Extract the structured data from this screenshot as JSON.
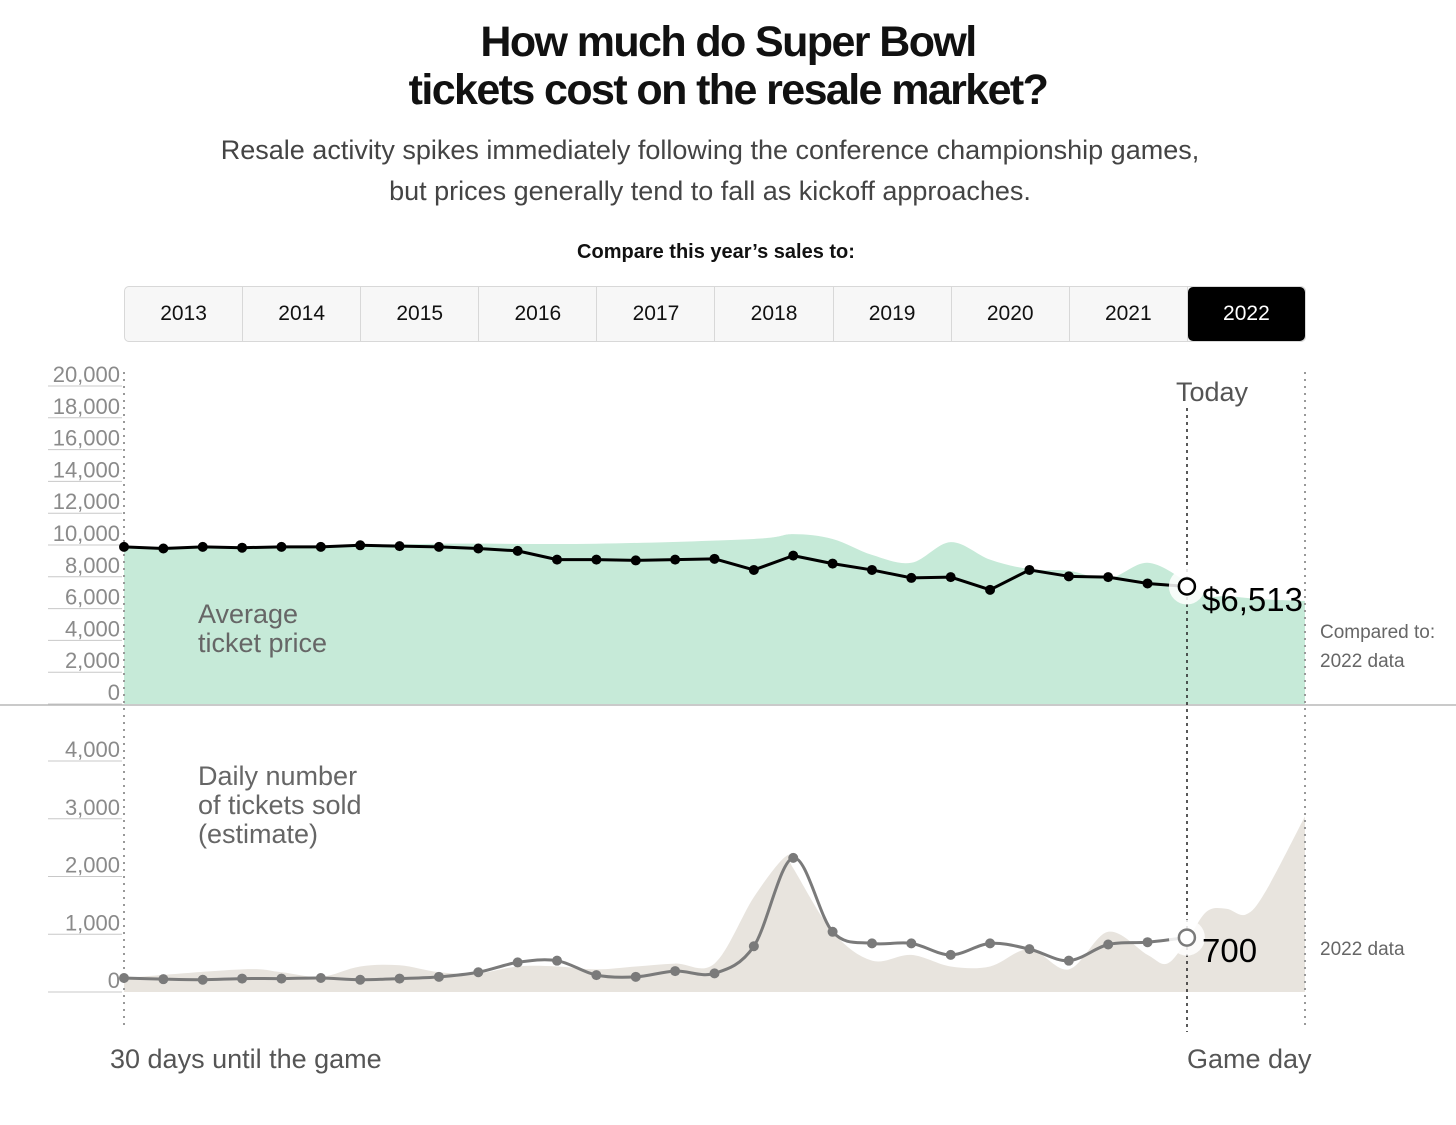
{
  "header": {
    "title_line1": "How much do Super Bowl",
    "title_line2": "tickets cost on the resale market?",
    "subtitle": "Resale activity spikes immediately following the conference championship games, but prices generally tend to fall as kickoff approaches."
  },
  "compare": {
    "label": "Compare this year’s sales to:",
    "years": [
      "2013",
      "2014",
      "2015",
      "2016",
      "2017",
      "2018",
      "2019",
      "2020",
      "2021",
      "2022"
    ],
    "selected": "2022"
  },
  "colors": {
    "price_area": "#c6ead8",
    "sales_area": "#e8e4de",
    "price_line": "#000000",
    "sales_line": "#7a7a7a",
    "selected_tab": "#000000"
  },
  "labels": {
    "today": "Today",
    "x_start": "30 days until the game",
    "x_end": "Game day",
    "compared_to": "Compared to:",
    "comparison_data_top": "2022 data",
    "comparison_data_bottom": "2022 data",
    "price_value_label": "$6,513",
    "sales_value_label": "700"
  },
  "chart_data": [
    {
      "type": "line",
      "name": "price",
      "ylabel_lines": [
        "Average",
        "ticket price"
      ],
      "ylim": [
        0,
        20000
      ],
      "yticks": [
        "20,000",
        "18,000",
        "16,000",
        "14,000",
        "12,000",
        "10,000",
        "8,000",
        "6,000",
        "4,000",
        "2,000",
        "0"
      ],
      "x_days_until_game": [
        30,
        29,
        28,
        27,
        26,
        25,
        24,
        23,
        22,
        21,
        20,
        19,
        18,
        17,
        16,
        15,
        14,
        13,
        12,
        11,
        10,
        9,
        8,
        7,
        6,
        5,
        4,
        3
      ],
      "values": [
        9000,
        8900,
        9000,
        8950,
        9000,
        9000,
        9100,
        9050,
        9000,
        8900,
        8750,
        8200,
        8200,
        8150,
        8200,
        8250,
        7550,
        8450,
        7950,
        7550,
        7050,
        7100,
        6300,
        7550,
        7150,
        7100,
        6700,
        6513
      ],
      "comparison_area": {
        "name": "2022 data",
        "x_days_until_game": [
          30,
          26,
          22,
          18,
          14,
          13,
          12,
          11,
          10,
          9,
          8,
          7,
          6,
          5,
          4,
          3,
          2.5,
          2,
          1,
          0
        ],
        "values": [
          9000,
          9050,
          9200,
          9200,
          9500,
          9800,
          9500,
          8500,
          8000,
          9300,
          8200,
          7600,
          7500,
          7000,
          8000,
          6800,
          5900,
          5900,
          5700,
          5600
        ]
      }
    },
    {
      "type": "line",
      "name": "sales",
      "ylabel_lines": [
        "Daily number",
        "of tickets sold",
        "(estimate)"
      ],
      "ylim": [
        0,
        4000
      ],
      "yticks": [
        "4,000",
        "3,000",
        "2,000",
        "1,000",
        "0"
      ],
      "x_days_until_game": [
        30,
        29,
        28,
        27,
        26,
        25,
        24,
        23,
        22,
        21,
        20,
        19,
        18,
        17,
        16,
        15,
        14,
        13,
        12,
        11,
        10,
        9,
        8,
        7,
        6,
        5,
        4,
        3
      ],
      "values": [
        0,
        -20,
        -30,
        -10,
        -10,
        0,
        -30,
        -10,
        20,
        100,
        270,
        300,
        50,
        20,
        120,
        80,
        550,
        2080,
        800,
        600,
        600,
        400,
        600,
        500,
        300,
        580,
        620,
        700
      ],
      "comparison_area": {
        "name": "2022 data",
        "x_days_until_game": [
          30,
          27,
          26,
          25,
          24,
          23,
          22,
          21,
          20,
          19,
          18,
          17,
          16,
          15,
          14,
          13.2,
          13,
          12,
          11,
          10,
          9,
          8,
          7,
          6,
          5,
          4,
          3.5,
          3,
          2.5,
          2,
          1.5,
          1,
          0
        ],
        "values": [
          0,
          150,
          100,
          20,
          200,
          220,
          100,
          80,
          200,
          200,
          150,
          200,
          250,
          250,
          1400,
          2100,
          1900,
          800,
          300,
          400,
          200,
          200,
          500,
          150,
          800,
          400,
          250,
          650,
          1150,
          1200,
          1100,
          1500,
          2800
        ]
      }
    }
  ]
}
